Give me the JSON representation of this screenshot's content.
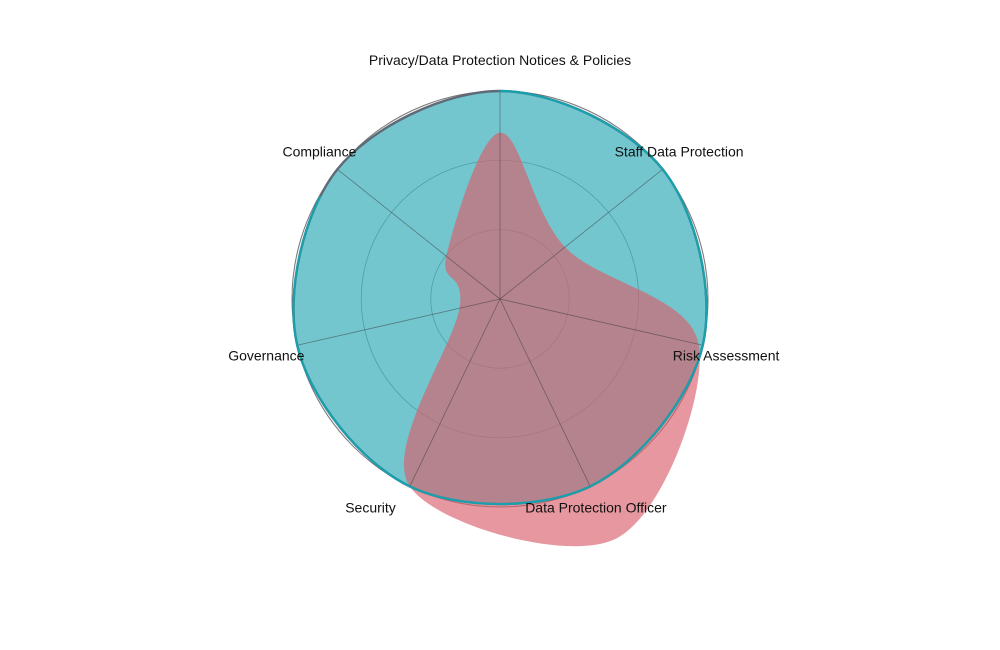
{
  "chart_data": {
    "type": "radar",
    "title": "",
    "axes": [
      "Privacy/Data Protection Notices & Policies",
      "Staff Data Protection",
      "Risk Assessment",
      "Data Protection Officer",
      "Security",
      "Governance",
      "Compliance"
    ],
    "r_range": [
      0,
      100
    ],
    "gridline_levels": [
      33.3,
      66.7
    ],
    "grid": true,
    "legend": "none",
    "series": [
      {
        "values": [
          100,
          100,
          100,
          100,
          100,
          100,
          100
        ],
        "fill_color": "#3db3bf",
        "line_color": "#17a0ad",
        "fill_opacity": 0.7
      },
      {
        "values": [
          80,
          40,
          98,
          128,
          100,
          20,
          33
        ],
        "fill_color": "#d9606c",
        "line_color": "#d9606c",
        "fill_opacity": 0.65
      }
    ]
  }
}
